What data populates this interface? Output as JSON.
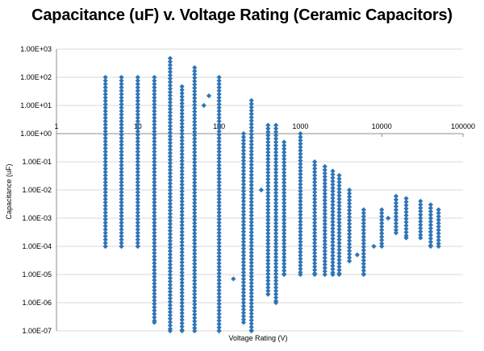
{
  "chart_data": {
    "type": "scatter",
    "title": "Capacitance (uF) v. Voltage Rating (Ceramic Capacitors)",
    "xlabel": "Voltage Rating (V)",
    "ylabel": "Capacitance (uF)",
    "x_scale": "log",
    "y_scale": "log",
    "xlim": [
      1,
      100000
    ],
    "ylim": [
      1e-07,
      1000
    ],
    "x_ticks": [
      {
        "value": 1,
        "label": "1"
      },
      {
        "value": 10,
        "label": "10"
      },
      {
        "value": 100,
        "label": "100"
      },
      {
        "value": 1000,
        "label": "1000"
      },
      {
        "value": 10000,
        "label": "10000"
      },
      {
        "value": 100000,
        "label": "100000"
      }
    ],
    "y_ticks": [
      {
        "value": 1e-07,
        "label": "1.00E-07"
      },
      {
        "value": 1e-06,
        "label": "1.00E-06"
      },
      {
        "value": 1e-05,
        "label": "1.00E-05"
      },
      {
        "value": 0.0001,
        "label": "1.00E-04"
      },
      {
        "value": 0.001,
        "label": "1.00E-03"
      },
      {
        "value": 0.01,
        "label": "1.00E-02"
      },
      {
        "value": 0.1,
        "label": "1.00E-01"
      },
      {
        "value": 1,
        "label": "1.00E+00"
      },
      {
        "value": 10,
        "label": "1.00E+01"
      },
      {
        "value": 100,
        "label": "1.00E+02"
      },
      {
        "value": 1000,
        "label": "1.00E+03"
      }
    ],
    "grid": "horizontal",
    "legend": "none",
    "marker_color": "#2E75B6",
    "series": [
      {
        "columns": [
          {
            "x": 4,
            "ymin": 0.0001,
            "ymax": 100
          },
          {
            "x": 6.3,
            "ymin": 0.0001,
            "ymax": 100
          },
          {
            "x": 10,
            "ymin": 0.0001,
            "ymax": 100
          },
          {
            "x": 16,
            "ymin": 2e-07,
            "ymax": 100
          },
          {
            "x": 25,
            "ymin": 1e-07,
            "ymax": 470
          },
          {
            "x": 35,
            "ymin": 1e-07,
            "ymax": 47
          },
          {
            "x": 50,
            "ymin": 1e-07,
            "ymax": 220
          },
          {
            "x": 100,
            "ymin": 1e-07,
            "ymax": 100
          },
          {
            "x": 200,
            "ymin": 2e-07,
            "ymax": 1
          },
          {
            "x": 250,
            "ymin": 1e-07,
            "ymax": 15
          },
          {
            "x": 400,
            "ymin": 2e-06,
            "ymax": 2
          },
          {
            "x": 500,
            "ymin": 1e-06,
            "ymax": 2
          },
          {
            "x": 630,
            "ymin": 1e-05,
            "ymax": 0.5
          },
          {
            "x": 1000,
            "ymin": 1e-05,
            "ymax": 1
          },
          {
            "x": 1500,
            "ymin": 1e-05,
            "ymax": 0.1
          },
          {
            "x": 2000,
            "ymin": 1e-05,
            "ymax": 0.068
          },
          {
            "x": 2500,
            "ymin": 1e-05,
            "ymax": 0.047
          },
          {
            "x": 3000,
            "ymin": 1e-05,
            "ymax": 0.033
          },
          {
            "x": 4000,
            "ymin": 3e-05,
            "ymax": 0.01
          },
          {
            "x": 6000,
            "ymin": 1e-05,
            "ymax": 0.002
          },
          {
            "x": 10000,
            "ymin": 0.0001,
            "ymax": 0.002
          },
          {
            "x": 15000,
            "ymin": 0.0003,
            "ymax": 0.006
          },
          {
            "x": 20000,
            "ymin": 0.0002,
            "ymax": 0.005
          },
          {
            "x": 30000,
            "ymin": 0.0002,
            "ymax": 0.004
          },
          {
            "x": 40000,
            "ymin": 0.0001,
            "ymax": 0.003
          },
          {
            "x": 50000,
            "ymin": 0.0001,
            "ymax": 0.002
          }
        ],
        "extra_points": [
          {
            "x": 75,
            "y": 22
          },
          {
            "x": 65,
            "y": 10
          },
          {
            "x": 150,
            "y": 7e-06
          },
          {
            "x": 330,
            "y": 0.01
          },
          {
            "x": 5000,
            "y": 5e-05
          },
          {
            "x": 8000,
            "y": 0.0001
          },
          {
            "x": 12000,
            "y": 0.001
          }
        ]
      }
    ]
  }
}
